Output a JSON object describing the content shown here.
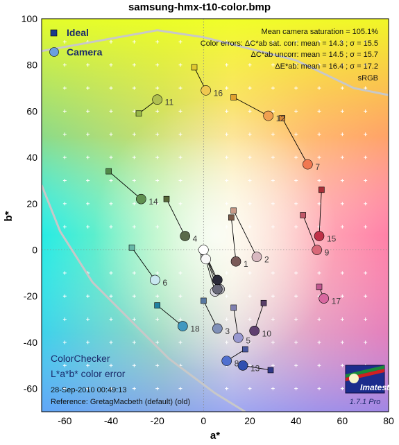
{
  "page_title": "samsung-hmx-t10-color.bmp",
  "colors": {
    "ideal_marker": "#1a3a8a",
    "camera_marker": "#6a9fe0",
    "boundary_line": "#c8c8c8",
    "grid_plus": "#ffffff"
  },
  "legend": [
    {
      "label": "Ideal",
      "marker": "square"
    },
    {
      "label": "Camera",
      "marker": "circle"
    }
  ],
  "stats": {
    "line1": "Mean camera saturation = 105.1%",
    "line2": "Color errors:  ΔC*ab sat. corr:  mean = 14.3 ;  σ = 15.5",
    "line3": "ΔC*ab uncorr:  mean = 14.5 ;  σ = 15.7",
    "line4": "ΔE*ab:  mean = 16.4 ;  σ = 17.2",
    "line5": "sRGB"
  },
  "info": {
    "title1": "ColorChecker",
    "title2": "L*a*b* color error",
    "date": "28-Sep-2010 00:49:13",
    "reference": "Reference: GretagMacbeth (default) (old)"
  },
  "logo": {
    "text": "Imatest",
    "version": "1.7.1  Pro"
  },
  "chart_data": {
    "type": "scatter",
    "title": "samsung-hmx-t10-color.bmp",
    "xlabel": "a*",
    "ylabel": "b*",
    "xlim": [
      -70,
      80
    ],
    "ylim": [
      -70,
      100
    ],
    "xticks": [
      -60,
      -40,
      -20,
      0,
      20,
      40,
      60,
      80
    ],
    "yticks": [
      -60,
      -40,
      -20,
      0,
      20,
      40,
      60,
      80,
      100
    ],
    "grid": "plus markers every 10 units",
    "legend_position": "top-left",
    "patches": [
      {
        "id": "1",
        "ideal": [
          12,
          14
        ],
        "camera": [
          14,
          -5
        ],
        "ideal_color": "#7a5a48",
        "camera_color": "#7a5a58"
      },
      {
        "id": "2",
        "ideal": [
          13,
          17
        ],
        "camera": [
          23,
          -3
        ],
        "ideal_color": "#c89a88",
        "camera_color": "#d8b8c0"
      },
      {
        "id": "3",
        "ideal": [
          0,
          -22
        ],
        "camera": [
          6,
          -34
        ],
        "ideal_color": "#5878a0",
        "camera_color": "#8090b8"
      },
      {
        "id": "4",
        "ideal": [
          -16,
          22
        ],
        "camera": [
          -8,
          6
        ],
        "ideal_color": "#586838",
        "camera_color": "#5a6a4a"
      },
      {
        "id": "5",
        "ideal": [
          13,
          -25
        ],
        "camera": [
          15,
          -38
        ],
        "ideal_color": "#8080b0",
        "camera_color": "#9898d0"
      },
      {
        "id": "6",
        "ideal": [
          -31,
          1
        ],
        "camera": [
          -21,
          -13
        ],
        "ideal_color": "#68b8a8",
        "camera_color": "#c8e8f0"
      },
      {
        "id": "7",
        "ideal": [
          34,
          57
        ],
        "camera": [
          45,
          37
        ],
        "ideal_color": "#d88838",
        "camera_color": "#f07850"
      },
      {
        "id": "8",
        "ideal": [
          18,
          -43
        ],
        "camera": [
          10,
          -48
        ],
        "ideal_color": "#4858a0",
        "camera_color": "#5070d0"
      },
      {
        "id": "9",
        "ideal": [
          43,
          15
        ],
        "camera": [
          49,
          0
        ],
        "ideal_color": "#c05868",
        "camera_color": "#d86878"
      },
      {
        "id": "10",
        "ideal": [
          26,
          -23
        ],
        "camera": [
          22,
          -35
        ],
        "ideal_color": "#584068",
        "camera_color": "#604070"
      },
      {
        "id": "11",
        "ideal": [
          -28,
          59
        ],
        "camera": [
          -20,
          65
        ],
        "ideal_color": "#98b848",
        "camera_color": "#b0c050"
      },
      {
        "id": "12",
        "ideal": [
          13,
          66
        ],
        "camera": [
          28,
          58
        ],
        "ideal_color": "#e0a030",
        "camera_color": "#f0a050"
      },
      {
        "id": "13",
        "ideal": [
          29,
          -52
        ],
        "camera": [
          17,
          -50
        ],
        "ideal_color": "#303888",
        "camera_color": "#3050b0"
      },
      {
        "id": "14",
        "ideal": [
          -41,
          34
        ],
        "camera": [
          -27,
          22
        ],
        "ideal_color": "#508848",
        "camera_color": "#609050"
      },
      {
        "id": "15",
        "ideal": [
          51,
          26
        ],
        "camera": [
          50,
          6
        ],
        "ideal_color": "#a83038",
        "camera_color": "#c03048"
      },
      {
        "id": "16",
        "ideal": [
          -4,
          79
        ],
        "camera": [
          1,
          69
        ],
        "ideal_color": "#e0c830",
        "camera_color": "#f0c850"
      },
      {
        "id": "17",
        "ideal": [
          50,
          -16
        ],
        "camera": [
          52,
          -21
        ],
        "ideal_color": "#c05890",
        "camera_color": "#d868a0"
      },
      {
        "id": "18",
        "ideal": [
          -20,
          -24
        ],
        "camera": [
          -9,
          -33
        ],
        "ideal_color": "#2080a0",
        "camera_color": "#4098c0"
      },
      {
        "id": "19",
        "ideal": [
          0,
          0
        ],
        "camera": [
          0,
          0
        ],
        "ideal_color": "#f0f0f0",
        "camera_color": "#ffffff"
      },
      {
        "id": "20",
        "ideal": [
          0,
          -3
        ],
        "camera": [
          1,
          -4
        ],
        "ideal_color": "#d0d0d0",
        "camera_color": "#f8f8f8"
      },
      {
        "id": "21",
        "ideal": [
          0,
          -1
        ],
        "camera": [
          5,
          -18
        ],
        "ideal_color": "#a8a8a8",
        "camera_color": "#d8d8e0"
      },
      {
        "id": "22",
        "ideal": [
          0,
          0
        ],
        "camera": [
          7,
          -17
        ],
        "ideal_color": "#808080",
        "camera_color": "#b0b0b8"
      },
      {
        "id": "23",
        "ideal": [
          0,
          0
        ],
        "camera": [
          6,
          -17
        ],
        "ideal_color": "#585858",
        "camera_color": "#686878"
      },
      {
        "id": "24",
        "ideal": [
          0,
          0
        ],
        "camera": [
          6,
          -13
        ],
        "ideal_color": "#333333",
        "camera_color": "#2a2a38"
      }
    ],
    "gamut_upper": [
      [
        -70,
        86
      ],
      [
        -20,
        95
      ],
      [
        0,
        92
      ],
      [
        40,
        82
      ],
      [
        65,
        70
      ],
      [
        80,
        67
      ]
    ],
    "gamut_lower": [
      [
        -70,
        28
      ],
      [
        -62,
        8
      ],
      [
        -48,
        -14
      ],
      [
        -30,
        -32
      ],
      [
        -15,
        -47
      ],
      [
        5,
        -62
      ],
      [
        18,
        -70
      ]
    ]
  }
}
